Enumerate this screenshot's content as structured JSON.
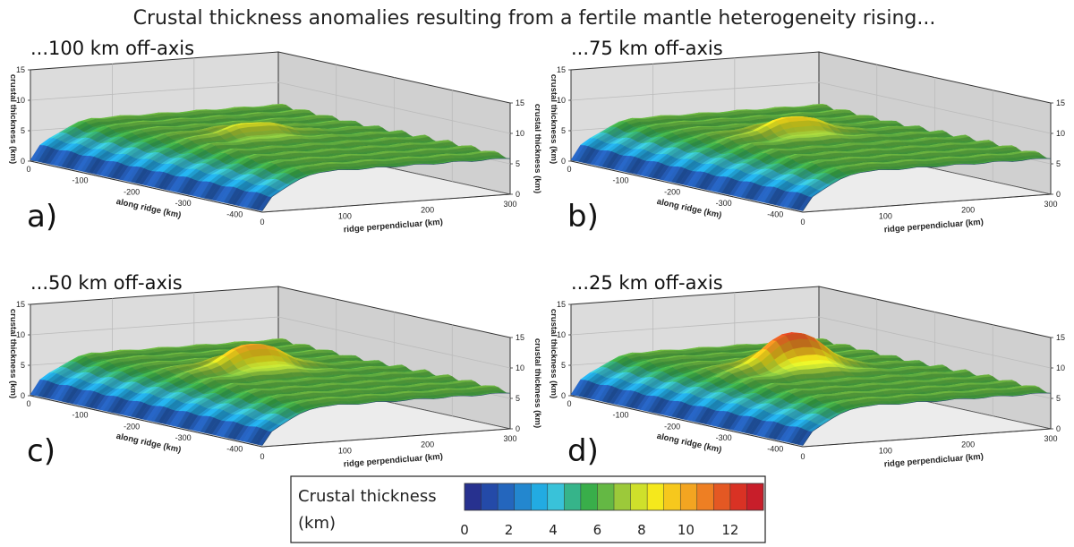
{
  "chart_data": {
    "type": "surface3d",
    "title": "Crustal thickness anomalies resulting from a fertile mantle heterogeneity rising...",
    "panels": [
      {
        "letter": "a)",
        "title": "...100 km off-axis",
        "offaxis_km": 100,
        "peak_thickness_km": 8.2
      },
      {
        "letter": "b)",
        "title": "...75 km off-axis",
        "offaxis_km": 75,
        "peak_thickness_km": 9.2
      },
      {
        "letter": "c)",
        "title": "...50 km off-axis",
        "offaxis_km": 50,
        "peak_thickness_km": 10.4
      },
      {
        "letter": "d)",
        "title": "...25 km off-axis",
        "offaxis_km": 25,
        "peak_thickness_km": 12.3
      }
    ],
    "axes": {
      "z": {
        "label": "crustal thickness (km)",
        "ticks": [
          "0",
          "5",
          "10",
          "15"
        ],
        "range": [
          0,
          15
        ]
      },
      "z_right_ticks": [
        "0",
        "5",
        "10",
        "15"
      ],
      "along_ridge": {
        "label": "along ridge (km)",
        "ticks": [
          "0",
          "-100",
          "-200",
          "-300",
          "-400"
        ],
        "range": [
          -450,
          0
        ]
      },
      "ridge_perpendicular": {
        "label": "ridge perpendicluar (km)",
        "ticks": [
          "0",
          "100",
          "200",
          "300"
        ],
        "range": [
          0,
          300
        ]
      }
    },
    "background_thickness_km": 6.2,
    "colorbar": {
      "title_line1": "Crustal thickness",
      "title_line2": "(km)",
      "range": [
        0,
        13.5
      ],
      "ticks": [
        "0",
        "2",
        "4",
        "6",
        "8",
        "10",
        "12"
      ],
      "colors": [
        "#27318f",
        "#244aa8",
        "#2466bd",
        "#2387cf",
        "#22abe2",
        "#39c2d9",
        "#36b48a",
        "#39ae4a",
        "#64b844",
        "#9cc93a",
        "#cfe02b",
        "#f5e81c",
        "#f6c81d",
        "#f3a521",
        "#ee7f23",
        "#e45823",
        "#d93224",
        "#c81e2a"
      ]
    }
  }
}
